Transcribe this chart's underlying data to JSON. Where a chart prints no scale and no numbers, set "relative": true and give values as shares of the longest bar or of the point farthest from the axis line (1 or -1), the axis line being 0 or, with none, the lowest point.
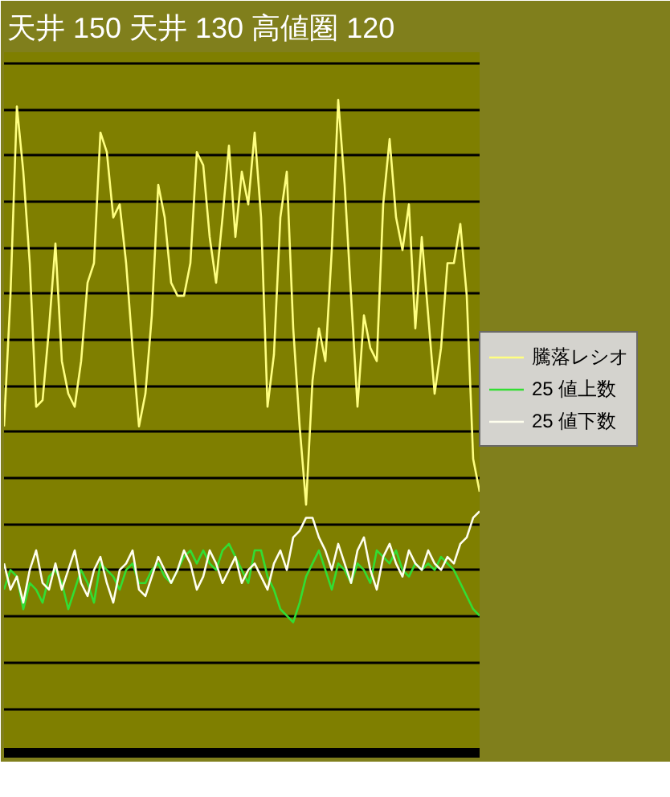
{
  "chart_data": {
    "type": "line",
    "title": "天井 150 天井 130 高値圏 120",
    "relative": true,
    "grid": "y",
    "legend": "right",
    "categories": [
      null,
      null,
      null,
      null,
      null,
      null,
      null,
      null,
      null,
      null,
      null,
      null,
      null,
      null,
      null,
      null,
      null,
      null,
      null,
      null,
      null,
      null,
      null,
      null,
      null,
      null,
      null,
      null,
      null,
      null,
      null,
      null,
      null,
      null,
      null,
      null,
      null,
      null,
      null,
      null,
      null,
      null,
      null,
      null,
      null,
      null,
      null,
      null,
      null,
      null,
      null,
      null,
      null,
      null,
      null,
      null,
      null,
      null,
      null,
      null,
      null,
      null,
      null,
      null,
      null,
      null,
      null,
      null,
      null,
      null,
      null,
      null,
      null,
      null,
      null
    ],
    "series": [
      {
        "name": "騰落レシオ",
        "color": "#ffff80",
        "values": [
          0.5,
          0.7,
          0.99,
          0.89,
          0.75,
          0.53,
          0.54,
          0.65,
          0.78,
          0.6,
          0.55,
          0.53,
          0.6,
          0.72,
          0.75,
          0.95,
          0.92,
          0.82,
          0.84,
          0.75,
          0.62,
          0.5,
          0.55,
          0.67,
          0.87,
          0.82,
          0.72,
          0.7,
          0.7,
          0.75,
          0.92,
          0.9,
          0.79,
          0.72,
          0.82,
          0.93,
          0.79,
          0.89,
          0.84,
          0.95,
          0.82,
          0.53,
          0.61,
          0.82,
          0.89,
          0.65,
          0.5,
          0.38,
          0.57,
          0.65,
          0.6,
          0.77,
          1.0,
          0.87,
          0.7,
          0.53,
          0.67,
          0.62,
          0.6,
          0.84,
          0.94,
          0.82,
          0.77,
          0.84,
          0.65,
          0.79,
          0.67,
          0.55,
          0.62,
          0.75,
          0.75,
          0.81,
          0.7,
          0.45,
          0.4
        ]
      },
      {
        "name": "25 値上数",
        "color": "#33dd33",
        "values": [
          0.25,
          0.28,
          0.27,
          0.22,
          0.26,
          0.25,
          0.23,
          0.27,
          0.28,
          0.26,
          0.22,
          0.25,
          0.28,
          0.26,
          0.23,
          0.29,
          0.28,
          0.27,
          0.25,
          0.28,
          0.29,
          0.26,
          0.26,
          0.28,
          0.29,
          0.27,
          0.26,
          0.28,
          0.3,
          0.31,
          0.29,
          0.31,
          0.29,
          0.28,
          0.31,
          0.32,
          0.3,
          0.28,
          0.26,
          0.31,
          0.31,
          0.27,
          0.25,
          0.22,
          0.21,
          0.2,
          0.23,
          0.27,
          0.29,
          0.31,
          0.28,
          0.25,
          0.29,
          0.28,
          0.26,
          0.29,
          0.28,
          0.26,
          0.31,
          0.3,
          0.29,
          0.31,
          0.28,
          0.27,
          0.29,
          0.28,
          0.29,
          0.28,
          0.3,
          0.29,
          0.28,
          0.26,
          0.24,
          0.22,
          0.21
        ]
      },
      {
        "name": "25 値下数",
        "color": "#ffffee",
        "values": [
          0.29,
          0.25,
          0.27,
          0.23,
          0.28,
          0.31,
          0.26,
          0.25,
          0.29,
          0.25,
          0.28,
          0.31,
          0.26,
          0.24,
          0.28,
          0.3,
          0.26,
          0.23,
          0.28,
          0.29,
          0.31,
          0.25,
          0.24,
          0.27,
          0.3,
          0.28,
          0.26,
          0.28,
          0.31,
          0.29,
          0.25,
          0.27,
          0.31,
          0.29,
          0.26,
          0.28,
          0.3,
          0.26,
          0.28,
          0.29,
          0.27,
          0.25,
          0.29,
          0.31,
          0.28,
          0.33,
          0.34,
          0.36,
          0.36,
          0.33,
          0.31,
          0.28,
          0.32,
          0.29,
          0.26,
          0.31,
          0.33,
          0.28,
          0.25,
          0.3,
          0.32,
          0.29,
          0.27,
          0.31,
          0.29,
          0.28,
          0.31,
          0.29,
          0.28,
          0.3,
          0.29,
          0.32,
          0.33,
          0.36,
          0.37
        ]
      }
    ]
  }
}
